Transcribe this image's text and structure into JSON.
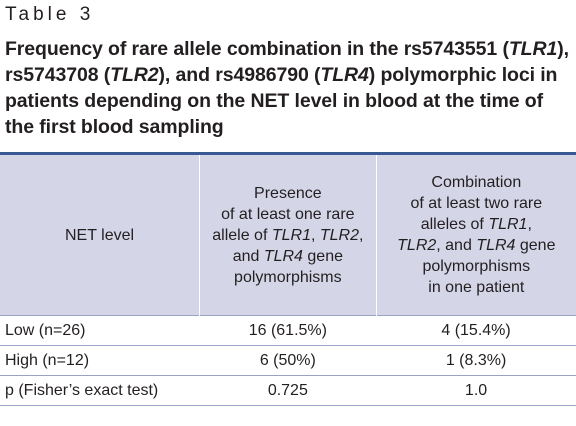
{
  "table_number": "Table 3",
  "caption": {
    "p1": "Frequency of rare allele combination in the rs5743551 (",
    "g1": "TLR1",
    "p2": "), rs5743708 (",
    "g2": "TLR2",
    "p3": "), and rs4986790 (",
    "g3": "TLR4",
    "p4": ") polymorphic loci in patients depending on the NET level in blood at the time of the first blood sampling"
  },
  "headers": {
    "col1": "NET level",
    "col2": {
      "a": "Presence",
      "b": "of at least one rare",
      "c": "allele of ",
      "g1": "TLR1",
      "d": ", ",
      "g2": "TLR2",
      "e": ",",
      "f": "and ",
      "g3": "TLR4",
      "g": " gene",
      "h": "polymorphisms"
    },
    "col3": {
      "a": "Combination",
      "b": "of at least two rare",
      "c": "alleles of ",
      "g1": "TLR1",
      "d": ",",
      "g2": "TLR2",
      "e": ", and ",
      "g3": "TLR4",
      "f": " gene",
      "g": "polymorphisms",
      "h": "in one patient"
    }
  },
  "rows": [
    {
      "label": "Low (n=26)",
      "presence": "16 (61.5%)",
      "combination": "4 (15.4%)"
    },
    {
      "label": "High (n=12)",
      "presence": "6 (50%)",
      "combination": "1 (8.3%)"
    },
    {
      "label": "p (Fisher’s exact test)",
      "presence": "0.725",
      "combination": "1.0"
    }
  ],
  "colors": {
    "header_bg": "#d4d6e8",
    "top_rule": "#3a5894",
    "row_rule": "#9aa3c6",
    "text": "#231f20"
  }
}
